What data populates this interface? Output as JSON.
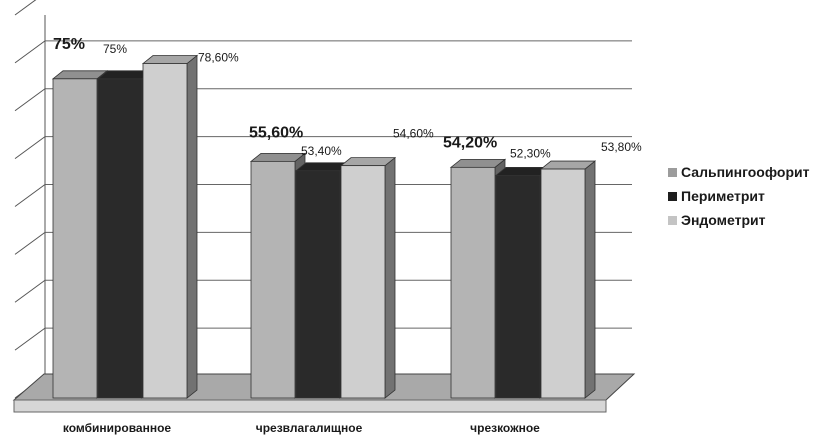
{
  "chart_data": {
    "type": "bar",
    "categories": [
      "комбинированное",
      "чрезвлагалищное",
      "чрезкожное"
    ],
    "series": [
      {
        "name": "Сальпингоофорит",
        "values": [
          75,
          55.6,
          54.2
        ],
        "labels": [
          "75%",
          "55,60%",
          "54,20%"
        ],
        "color": "#b4b4b4"
      },
      {
        "name": "Периметрит",
        "values": [
          75,
          53.4,
          52.3
        ],
        "labels": [
          "75%",
          "53,40%",
          "52,30%"
        ],
        "color": "#2a2a2a"
      },
      {
        "name": "Эндометрит",
        "values": [
          78.6,
          54.6,
          53.8
        ],
        "labels": [
          "78,60%",
          "54,60%",
          "53,80%"
        ],
        "color": "#cfcfcf"
      }
    ],
    "ylim": [
      0,
      90
    ],
    "grid": true,
    "legend": "right"
  }
}
